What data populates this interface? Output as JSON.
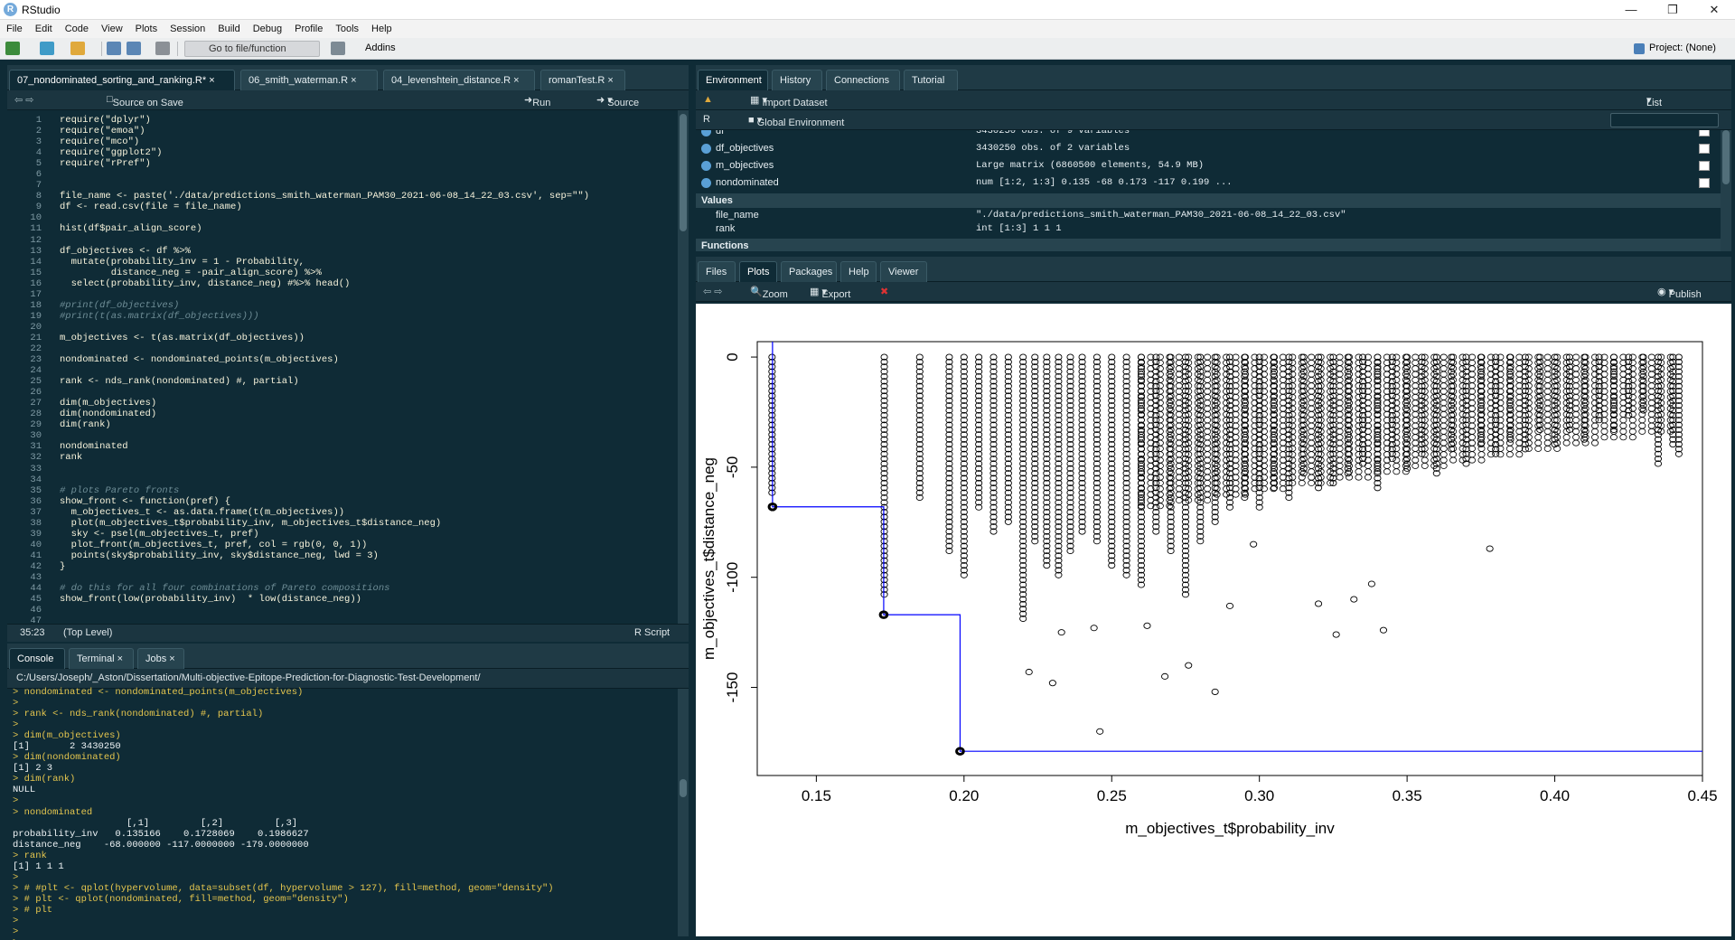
{
  "window": {
    "title": "RStudio"
  },
  "menu": [
    "File",
    "Edit",
    "Code",
    "View",
    "Plots",
    "Session",
    "Build",
    "Debug",
    "Profile",
    "Tools",
    "Help"
  ],
  "toolbar": {
    "goto": "Go to file/function",
    "addins": "Addins",
    "project": "Project: (None)"
  },
  "editor": {
    "tabs": [
      "07_nondominated_sorting_and_ranking.R*",
      "06_smith_waterman.R",
      "04_levenshtein_distance.R",
      "romanTest.R"
    ],
    "source_on_save": "Source on Save",
    "run": "Run",
    "source": "Source",
    "position": "35:23",
    "scope": "(Top Level)",
    "filetype": "R Script",
    "lines": [
      "require(\"dplyr\")",
      "require(\"emoa\")",
      "require(\"mco\")",
      "require(\"ggplot2\")",
      "require(\"rPref\")",
      "",
      "",
      "file_name <- paste('./data/predictions_smith_waterman_PAM30_2021-06-08_14_22_03.csv', sep=\"\")",
      "df <- read.csv(file = file_name)",
      "",
      "hist(df$pair_align_score)",
      "",
      "df_objectives <- df %>%",
      "  mutate(probability_inv = 1 - Probability,",
      "         distance_neg = -pair_align_score) %>%",
      "  select(probability_inv, distance_neg) #%>% head()",
      "",
      "#print(df_objectives)",
      "#print(t(as.matrix(df_objectives)))",
      "",
      "m_objectives <- t(as.matrix(df_objectives))",
      "",
      "nondominated <- nondominated_points(m_objectives)",
      "",
      "rank <- nds_rank(nondominated) #, partial)",
      "",
      "dim(m_objectives)",
      "dim(nondominated)",
      "dim(rank)",
      "",
      "nondominated",
      "rank",
      "",
      "",
      "# plots Pareto fronts",
      "show_front <- function(pref) {",
      "  m_objectives_t <- as.data.frame(t(m_objectives))",
      "  plot(m_objectives_t$probability_inv, m_objectives_t$distance_neg)",
      "  sky <- psel(m_objectives_t, pref)",
      "  plot_front(m_objectives_t, pref, col = rgb(0, 0, 1))",
      "  points(sky$probability_inv, sky$distance_neg, lwd = 3)",
      "}",
      "",
      "# do this for all four combinations of Pareto compositions",
      "show_front(low(probability_inv)  * low(distance_neg))",
      "",
      ""
    ]
  },
  "console": {
    "tabs": [
      "Console",
      "Terminal",
      "Jobs"
    ],
    "path": "C:/Users/Joseph/_Aston/Dissertation/Multi-objective-Epitope-Prediction-for-Diagnostic-Test-Development/",
    "lines": [
      {
        "p": true,
        "t": "> nondominated <- nondominated_points(m_objectives)"
      },
      {
        "p": true,
        "t": ">"
      },
      {
        "p": true,
        "t": "> rank <- nds_rank(nondominated) #, partial)"
      },
      {
        "p": true,
        "t": ">"
      },
      {
        "p": true,
        "t": "> dim(m_objectives)"
      },
      {
        "p": false,
        "t": "[1]       2 3430250"
      },
      {
        "p": true,
        "t": "> dim(nondominated)"
      },
      {
        "p": false,
        "t": "[1] 2 3"
      },
      {
        "p": true,
        "t": "> dim(rank)"
      },
      {
        "p": false,
        "t": "NULL"
      },
      {
        "p": true,
        "t": ">"
      },
      {
        "p": true,
        "t": "> nondominated"
      },
      {
        "p": false,
        "t": "                    [,1]         [,2]         [,3]"
      },
      {
        "p": false,
        "t": "probability_inv   0.135166    0.1728069    0.1986627"
      },
      {
        "p": false,
        "t": "distance_neg    -68.000000 -117.0000000 -179.0000000"
      },
      {
        "p": true,
        "t": "> rank"
      },
      {
        "p": false,
        "t": "[1] 1 1 1"
      },
      {
        "p": true,
        "t": ">"
      },
      {
        "p": true,
        "t": "> # #plt <- qplot(hypervolume, data=subset(df, hypervolume > 127), fill=method, geom=\"density\")"
      },
      {
        "p": true,
        "t": "> # plt <- qplot(nondominated, fill=method, geom=\"density\")"
      },
      {
        "p": true,
        "t": "> # plt"
      },
      {
        "p": true,
        "t": ">"
      },
      {
        "p": true,
        "t": ">"
      },
      {
        "p": true,
        "t": ">"
      }
    ]
  },
  "environment": {
    "tabs": [
      "Environment",
      "History",
      "Connections",
      "Tutorial"
    ],
    "import": "Import Dataset",
    "list": "List",
    "lang": "R",
    "scope": "Global Environment",
    "data_rows": [
      {
        "name": "df",
        "value": "3430250 obs. of 9 variables"
      },
      {
        "name": "df_objectives",
        "value": "3430250 obs. of 2 variables"
      },
      {
        "name": "m_objectives",
        "value": "Large matrix (6860500 elements,  54.9 MB)"
      },
      {
        "name": "nondominated",
        "value": "num [1:2, 1:3] 0.135 -68 0.173 -117 0.199 ..."
      }
    ],
    "values_header": "Values",
    "value_rows": [
      {
        "name": "file_name",
        "value": "\"./data/predictions_smith_waterman_PAM30_2021-06-08_14_22_03.csv\""
      },
      {
        "name": "rank",
        "value": "int [1:3] 1 1 1"
      }
    ],
    "functions_header": "Functions"
  },
  "plots": {
    "tabs": [
      "Files",
      "Plots",
      "Packages",
      "Help",
      "Viewer"
    ],
    "zoom": "Zoom",
    "export": "Export",
    "publish": "Publish"
  },
  "chart_data": {
    "type": "scatter",
    "xlabel": "m_objectives_t$probability_inv",
    "ylabel": "m_objectives_t$distance_neg",
    "xlim": [
      0.13,
      0.45
    ],
    "ylim": [
      -190,
      7
    ],
    "xticks": [
      0.15,
      0.2,
      0.25,
      0.3,
      0.35,
      0.4,
      0.45
    ],
    "yticks": [
      0,
      -50,
      -100,
      -150
    ],
    "front_color": "#0000ff",
    "pareto_points": [
      {
        "x": 0.135166,
        "y": -68
      },
      {
        "x": 0.1728069,
        "y": -117
      },
      {
        "x": 0.1986627,
        "y": -179
      }
    ],
    "columns": [
      {
        "x": 0.135,
        "min": -62
      },
      {
        "x": 0.173,
        "min": -110
      },
      {
        "x": 0.185,
        "min": -65
      },
      {
        "x": 0.195,
        "min": -90
      },
      {
        "x": 0.2,
        "min": -100
      },
      {
        "x": 0.205,
        "min": -70
      },
      {
        "x": 0.21,
        "min": -80
      },
      {
        "x": 0.215,
        "min": -75
      },
      {
        "x": 0.22,
        "min": -120
      },
      {
        "x": 0.224,
        "min": -85
      },
      {
        "x": 0.228,
        "min": -95
      },
      {
        "x": 0.232,
        "min": -100
      },
      {
        "x": 0.236,
        "min": -90
      },
      {
        "x": 0.24,
        "min": -80
      },
      {
        "x": 0.245,
        "min": -85
      },
      {
        "x": 0.25,
        "min": -95
      },
      {
        "x": 0.255,
        "min": -100
      },
      {
        "x": 0.26,
        "min": -105
      },
      {
        "x": 0.265,
        "min": -80
      },
      {
        "x": 0.27,
        "min": -90
      },
      {
        "x": 0.275,
        "min": -110
      },
      {
        "x": 0.28,
        "min": -85
      },
      {
        "x": 0.285,
        "min": -75
      },
      {
        "x": 0.29,
        "min": -70
      },
      {
        "x": 0.295,
        "min": -65
      },
      {
        "x": 0.3,
        "min": -70
      },
      {
        "x": 0.305,
        "min": -60
      },
      {
        "x": 0.31,
        "min": -65
      },
      {
        "x": 0.315,
        "min": -55
      },
      {
        "x": 0.32,
        "min": -60
      },
      {
        "x": 0.325,
        "min": -58
      },
      {
        "x": 0.33,
        "min": -55
      },
      {
        "x": 0.335,
        "min": -50
      },
      {
        "x": 0.34,
        "min": -60
      },
      {
        "x": 0.345,
        "min": -48
      },
      {
        "x": 0.35,
        "min": -52
      },
      {
        "x": 0.355,
        "min": -45
      },
      {
        "x": 0.36,
        "min": -55
      },
      {
        "x": 0.365,
        "min": -42
      },
      {
        "x": 0.37,
        "min": -50
      },
      {
        "x": 0.375,
        "min": -40
      },
      {
        "x": 0.38,
        "min": -45
      },
      {
        "x": 0.385,
        "min": -38
      },
      {
        "x": 0.39,
        "min": -42
      },
      {
        "x": 0.395,
        "min": -35
      },
      {
        "x": 0.4,
        "min": -40
      },
      {
        "x": 0.405,
        "min": -35
      },
      {
        "x": 0.41,
        "min": -38
      },
      {
        "x": 0.415,
        "min": -30
      },
      {
        "x": 0.42,
        "min": -33
      },
      {
        "x": 0.425,
        "min": -28
      },
      {
        "x": 0.43,
        "min": -25
      },
      {
        "x": 0.435,
        "min": -50
      },
      {
        "x": 0.44,
        "min": -40
      },
      {
        "x": 0.442,
        "min": -45
      }
    ],
    "outliers": [
      {
        "x": 0.246,
        "y": -170
      },
      {
        "x": 0.285,
        "y": -152
      },
      {
        "x": 0.23,
        "y": -148
      },
      {
        "x": 0.222,
        "y": -143
      },
      {
        "x": 0.268,
        "y": -145
      },
      {
        "x": 0.276,
        "y": -140
      },
      {
        "x": 0.342,
        "y": -124
      },
      {
        "x": 0.32,
        "y": -112
      },
      {
        "x": 0.332,
        "y": -110
      },
      {
        "x": 0.338,
        "y": -103
      },
      {
        "x": 0.378,
        "y": -87
      },
      {
        "x": 0.298,
        "y": -85
      },
      {
        "x": 0.233,
        "y": -125
      },
      {
        "x": 0.262,
        "y": -122
      },
      {
        "x": 0.244,
        "y": -123
      },
      {
        "x": 0.29,
        "y": -113
      },
      {
        "x": 0.326,
        "y": -126
      }
    ]
  }
}
